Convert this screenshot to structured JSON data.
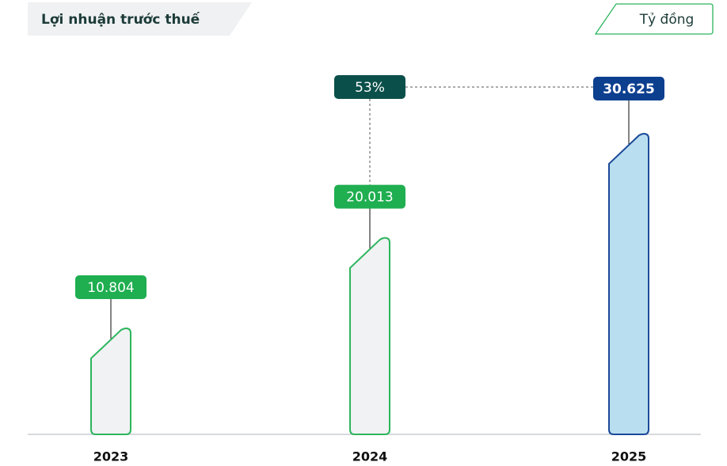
{
  "chart_data": {
    "type": "bar",
    "title": "Lợi nhuận trước thuế",
    "unit": "Tỷ đồng",
    "categories": [
      "2023",
      "2024",
      "2025"
    ],
    "values": [
      10804,
      20013,
      30625
    ],
    "value_labels": [
      "10.804",
      "20.013",
      "30.625"
    ],
    "colors": [
      "#2db55d",
      "#2db55d",
      "#1c4a9a"
    ],
    "fills": [
      "#f1f2f4",
      "#f1f2f4",
      "#b9def0"
    ],
    "label_colors": [
      "#1fae50",
      "#1fae50",
      "#0d3f8f"
    ],
    "growth": {
      "value": 53,
      "label": "53%"
    },
    "growth_color": "#0b4f4a"
  }
}
